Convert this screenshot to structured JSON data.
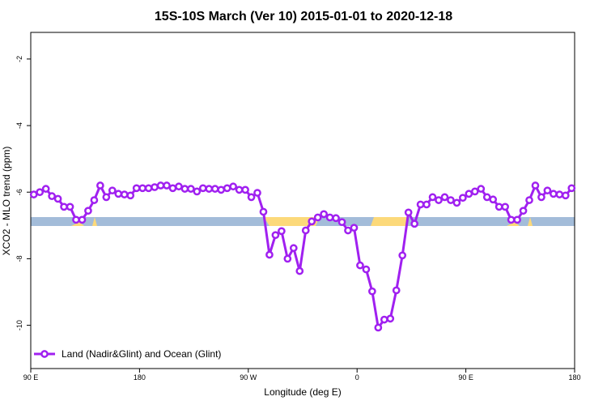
{
  "chart_data": {
    "type": "line",
    "title": "15S-10S March (Ver 10)   2015-01-01 to 2020-12-18",
    "x_label": "Longitude (deg E)",
    "y_label": "XCO2 - MLO trend (ppm)",
    "x": [
      92.5,
      97.5,
      102.5,
      107.5,
      112.5,
      117.5,
      122.5,
      127.5,
      132.5,
      137.5,
      142.5,
      147.5,
      152.5,
      157.5,
      162.5,
      167.5,
      172.5,
      177.5,
      182.5,
      187.5,
      192.5,
      197.5,
      202.5,
      207.5,
      212.5,
      217.5,
      222.5,
      227.5,
      232.5,
      237.5,
      242.5,
      247.5,
      252.5,
      257.5,
      262.5,
      267.5,
      272.5,
      277.5,
      282.5,
      287.5,
      292.5,
      297.5,
      302.5,
      307.5,
      312.5,
      317.5,
      322.5,
      327.5,
      332.5,
      337.5,
      342.5,
      347.5,
      352.5,
      357.5,
      362.5,
      367.5,
      372.5,
      377.5,
      382.5,
      387.5,
      392.5,
      397.5,
      402.5,
      407.5,
      412.5,
      417.5,
      422.5,
      427.5,
      432.5,
      437.5,
      442.5,
      447.5,
      452.5,
      457.5,
      462.5,
      467.5,
      472.5,
      477.5,
      482.5,
      487.5,
      492.5,
      497.5,
      502.5,
      507.5,
      512.5,
      517.5,
      522.5,
      527.5,
      532.5,
      537.5
    ],
    "series": [
      {
        "name": "Land (Nadir&Glint) and Ocean (Glint)",
        "color": "#a020f0",
        "values": [
          -6.07,
          -6.0,
          -5.9,
          -6.12,
          -6.2,
          -6.44,
          -6.44,
          -6.83,
          -6.83,
          -6.56,
          -6.24,
          -5.8,
          -6.15,
          -5.95,
          -6.05,
          -6.07,
          -6.1,
          -5.88,
          -5.88,
          -5.88,
          -5.85,
          -5.8,
          -5.8,
          -5.88,
          -5.83,
          -5.9,
          -5.9,
          -5.98,
          -5.88,
          -5.9,
          -5.9,
          -5.93,
          -5.88,
          -5.83,
          -5.93,
          -5.93,
          -6.15,
          -6.02,
          -6.59,
          -7.88,
          -7.29,
          -7.17,
          -8.0,
          -7.68,
          -8.37,
          -7.15,
          -6.88,
          -6.76,
          -6.66,
          -6.76,
          -6.78,
          -6.9,
          -7.15,
          -7.07,
          -8.2,
          -8.32,
          -8.98,
          -10.07,
          -9.83,
          -9.8,
          -8.95,
          -7.9,
          -6.61,
          -6.95,
          -6.37,
          -6.37,
          -6.15,
          -6.24,
          -6.15,
          -6.24,
          -6.32,
          -6.17,
          -6.05,
          -5.98,
          -5.9,
          -6.15,
          -6.22,
          -6.44,
          -6.44,
          -6.83,
          -6.83,
          -6.56,
          -6.24,
          -5.8,
          -6.15,
          -5.95,
          -6.05,
          -6.07,
          -6.1,
          -5.88
        ]
      }
    ],
    "xlim": [
      90,
      540
    ],
    "xticks": [
      {
        "value": 90,
        "label": "90 E"
      },
      180,
      {
        "value": 270,
        "label": "90 W"
      },
      {
        "value": 360,
        "label": "0"
      },
      {
        "value": 450,
        "label": "90 E"
      },
      {
        "value": 540,
        "label": "180"
      }
    ],
    "ylim": [
      -11.3,
      -1.2
    ],
    "yticks": [
      -10,
      -8,
      -6,
      -4,
      -2
    ],
    "legend": "bottom-left"
  }
}
